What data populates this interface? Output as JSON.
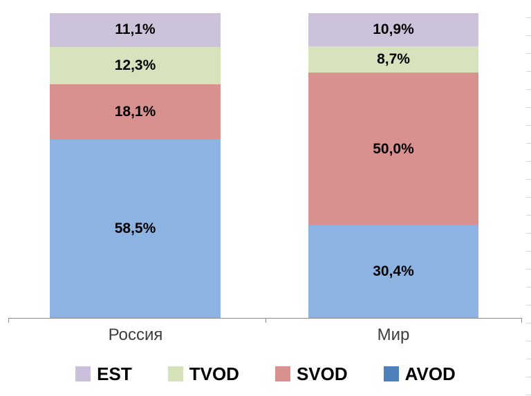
{
  "chart_data": {
    "type": "bar",
    "variant": "stacked-100",
    "orientation": "vertical",
    "categories": [
      "Россия",
      "Мир"
    ],
    "series": [
      {
        "name": "EST",
        "color": "#CCC2DA",
        "values": [
          11.1,
          10.9
        ],
        "display": [
          "11,1%",
          "10,9%"
        ]
      },
      {
        "name": "TVOD",
        "color": "#D7E3BC",
        "values": [
          12.3,
          8.7
        ],
        "display": [
          "12,3%",
          "8,7%"
        ]
      },
      {
        "name": "SVOD",
        "color": "#D9918F",
        "values": [
          18.1,
          50.0
        ],
        "display": [
          "18,1%",
          "50,0%"
        ]
      },
      {
        "name": "AVOD",
        "color": "#8DB3E2",
        "values": [
          58.5,
          30.4
        ],
        "display": [
          "58,5%",
          "30,4%"
        ]
      }
    ],
    "stack_order_top_to_bottom": [
      "EST",
      "TVOD",
      "SVOD",
      "AVOD"
    ],
    "title": "",
    "xlabel": "",
    "ylabel": "",
    "ylim": [
      0,
      100
    ],
    "grid": false,
    "legend_position": "bottom",
    "value_label_format": "percent-comma-decimal"
  },
  "legend": {
    "items": [
      {
        "label": "EST",
        "color": "#CBC0DB"
      },
      {
        "label": "TVOD",
        "color": "#D6E2BA"
      },
      {
        "label": "SVOD",
        "color": "#D9918F"
      },
      {
        "label": "AVOD",
        "color": "#4E80BC"
      }
    ]
  },
  "axis": {
    "line_color": "#898989"
  }
}
